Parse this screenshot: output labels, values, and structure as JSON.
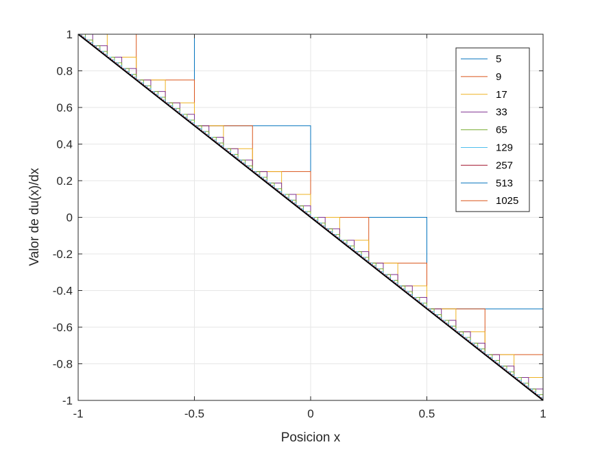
{
  "chart_data": {
    "type": "line",
    "xlabel": "Posicion x",
    "ylabel": "Valor de du(x)/dx",
    "xlim": [
      -1,
      1
    ],
    "ylim": [
      -1,
      1
    ],
    "x_ticks": [
      -1,
      -0.5,
      0,
      0.5,
      1
    ],
    "x_tick_labels": [
      "-1",
      "-0.5",
      "0",
      "0.5",
      "1"
    ],
    "y_ticks": [
      -1,
      -0.8,
      -0.6,
      -0.4,
      -0.2,
      0,
      0.2,
      0.4,
      0.6,
      0.8,
      1
    ],
    "y_tick_labels": [
      "-1",
      "-0.8",
      "-0.6",
      "-0.4",
      "-0.2",
      "0",
      "0.2",
      "0.4",
      "0.6",
      "0.8",
      "1"
    ],
    "grid": true,
    "legend_position": "top-right",
    "series": [
      {
        "name": "5",
        "n": 5,
        "color": "#0072BD"
      },
      {
        "name": "9",
        "n": 9,
        "color": "#D95319"
      },
      {
        "name": "17",
        "n": 17,
        "color": "#EDB120"
      },
      {
        "name": "33",
        "n": 33,
        "color": "#7E2F8E"
      },
      {
        "name": "65",
        "n": 65,
        "color": "#77AC30"
      },
      {
        "name": "129",
        "n": 129,
        "color": "#4DBEEE"
      },
      {
        "name": "257",
        "n": 257,
        "color": "#A2142F"
      },
      {
        "name": "513",
        "n": 513,
        "color": "#0072BD"
      },
      {
        "name": "1025",
        "n": 1025,
        "color": "#D95319"
      }
    ],
    "exact_line": {
      "x": [
        -1,
        1
      ],
      "y": [
        1,
        -1
      ],
      "color": "#000000"
    }
  }
}
